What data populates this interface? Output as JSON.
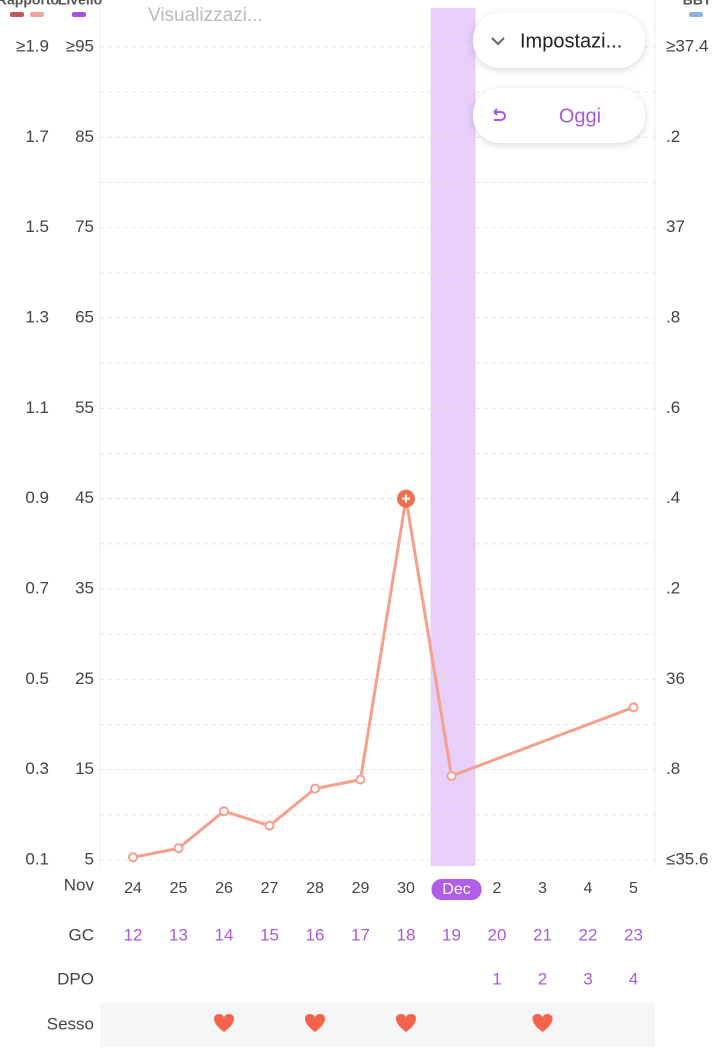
{
  "chart_data": {
    "type": "line",
    "title": "Visualizzazi...",
    "legend": [
      {
        "name": "Rapporto",
        "colors": [
          "#c2555e",
          "#f2a3a0"
        ]
      },
      {
        "name": "Livello",
        "colors": [
          "#a650e6"
        ]
      },
      {
        "name": "BBT",
        "colors": [
          "#8fb1e2"
        ]
      }
    ],
    "ratio_lim": [
      0.1,
      1.9
    ],
    "ratio_ticks": [
      {
        "value": 1.9,
        "label": "≥1.9"
      },
      1.7,
      1.5,
      1.3,
      1.1,
      0.9,
      0.7,
      0.5,
      0.3,
      0.1
    ],
    "ylim": [
      5,
      95
    ],
    "yticks": [
      {
        "value": 95,
        "label": "≥95"
      },
      85,
      75,
      65,
      55,
      45,
      35,
      25,
      15,
      5
    ],
    "bbt_lim": [
      35.6,
      37.4
    ],
    "bbt_ticks": [
      {
        "value": 37.4,
        "label": "≥37.4"
      },
      {
        "value": 37.2,
        "label": ".2"
      },
      37,
      {
        "value": 36.8,
        "label": ".8"
      },
      {
        "value": 36.6,
        "label": ".6"
      },
      {
        "value": 36.4,
        "label": ".4"
      },
      {
        "value": 36.2,
        "label": ".2"
      },
      36,
      {
        "value": 35.8,
        "label": ".8"
      },
      {
        "value": 35.6,
        "label": "≤35.6"
      }
    ],
    "grid": true,
    "month_label": "Nov",
    "categories": [
      "24",
      "25",
      "26",
      "27",
      "28",
      "29",
      "30",
      "Dec",
      "2",
      "3",
      "4",
      "5"
    ],
    "highlight_index": 7,
    "highlight_color": "#e7cffa",
    "series": [
      {
        "name": "Livello",
        "color": "#f4a08c",
        "values": [
          5.3,
          6.3,
          10.4,
          8.8,
          12.9,
          13.9,
          45,
          14.3,
          null,
          null,
          null,
          21.9
        ]
      }
    ],
    "rows": [
      {
        "label": "GC",
        "values": [
          12,
          13,
          14,
          15,
          16,
          17,
          18,
          19,
          20,
          21,
          22,
          23
        ]
      },
      {
        "label": "DPO",
        "values": [
          null,
          null,
          null,
          null,
          null,
          null,
          null,
          null,
          1,
          2,
          3,
          4
        ]
      },
      {
        "label": "Sesso",
        "values": [
          false,
          false,
          true,
          false,
          true,
          false,
          true,
          false,
          false,
          true,
          false,
          false
        ]
      }
    ],
    "controls": [
      "Impostazi...",
      "Oggi"
    ]
  }
}
